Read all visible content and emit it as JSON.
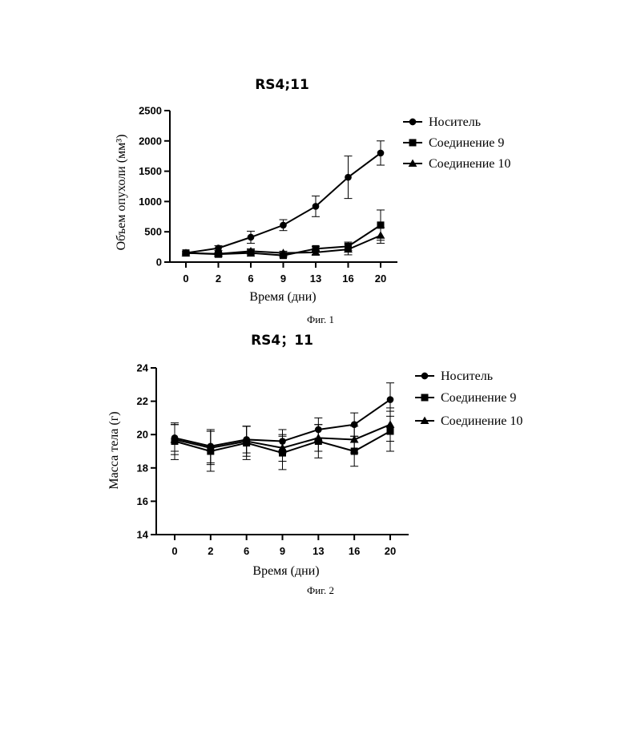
{
  "chart_data": [
    {
      "type": "line",
      "title": "RS4;11",
      "caption": "Фиг. 1",
      "xlabel": "Время (дни)",
      "ylabel": "Объем опухоли (мм³)",
      "categories": [
        "0",
        "2",
        "6",
        "9",
        "13",
        "16",
        "20"
      ],
      "yticks": [
        0,
        500,
        1000,
        1500,
        2000,
        2500
      ],
      "ylim": [
        0,
        2500
      ],
      "legend_position": "top-right",
      "series": [
        {
          "name": "Носитель",
          "marker": "circle",
          "values": [
            150,
            230,
            410,
            610,
            920,
            1400,
            1800
          ],
          "errors": [
            20,
            40,
            100,
            90,
            170,
            350,
            200
          ]
        },
        {
          "name": "Соединение 9",
          "marker": "square",
          "values": [
            150,
            130,
            150,
            110,
            220,
            260,
            610
          ],
          "errors": [
            15,
            25,
            50,
            30,
            40,
            70,
            250
          ]
        },
        {
          "name": "Соединение 10",
          "marker": "triangle",
          "values": [
            150,
            135,
            180,
            150,
            160,
            210,
            440
          ],
          "errors": [
            15,
            20,
            40,
            30,
            35,
            90,
            130
          ]
        }
      ]
    },
    {
      "type": "line",
      "title": "RS4；11",
      "caption": "Фиг. 2",
      "xlabel": "Время (дни)",
      "ylabel": "Масса тела (г)",
      "categories": [
        "0",
        "2",
        "6",
        "9",
        "13",
        "16",
        "20"
      ],
      "yticks": [
        14,
        16,
        18,
        20,
        22,
        24
      ],
      "ylim": [
        14,
        24
      ],
      "legend_position": "top-right",
      "series": [
        {
          "name": "Носитель",
          "marker": "circle",
          "values": [
            19.8,
            19.3,
            19.7,
            19.6,
            20.3,
            20.6,
            22.1
          ],
          "errors": [
            0.8,
            1.0,
            0.8,
            0.7,
            0.7,
            0.7,
            1.0
          ]
        },
        {
          "name": "Соединение 9",
          "marker": "square",
          "values": [
            19.6,
            19.0,
            19.5,
            18.9,
            19.6,
            19.0,
            20.2
          ],
          "errors": [
            1.1,
            1.2,
            1.0,
            1.0,
            1.0,
            0.9,
            1.2
          ]
        },
        {
          "name": "Соединение 10",
          "marker": "triangle",
          "values": [
            19.7,
            19.2,
            19.6,
            19.2,
            19.8,
            19.7,
            20.6
          ],
          "errors": [
            0.9,
            1.0,
            0.9,
            0.8,
            0.8,
            0.8,
            1.0
          ]
        }
      ]
    }
  ]
}
